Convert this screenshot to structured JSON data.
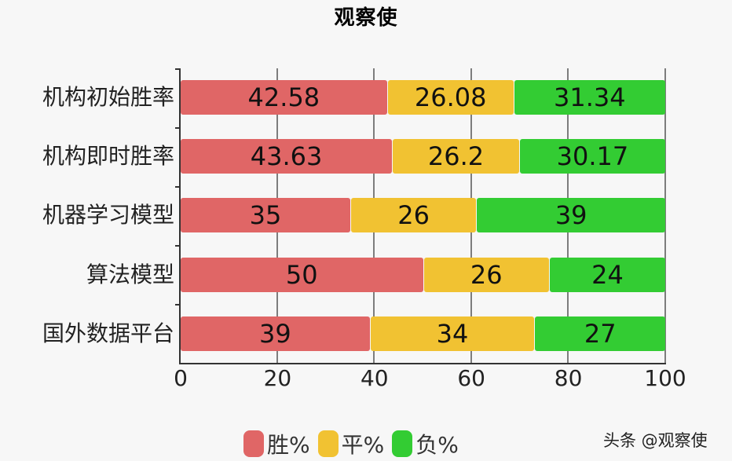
{
  "title": "观察使",
  "watermark": "头条 @观察使",
  "colors": {
    "win": "#e06666",
    "draw": "#f1c232",
    "loss": "#33cc33"
  },
  "legend": [
    {
      "label": "胜%",
      "color": "#e06666"
    },
    {
      "label": "平%",
      "color": "#f1c232"
    },
    {
      "label": "负%",
      "color": "#33cc33"
    }
  ],
  "x_ticks": [
    "0",
    "20",
    "40",
    "60",
    "80",
    "100"
  ],
  "rows": [
    {
      "label": "机构初始胜率",
      "win": "42.58",
      "draw": "26.08",
      "loss": "31.34"
    },
    {
      "label": "机构即时胜率",
      "win": "43.63",
      "draw": "26.2",
      "loss": "30.17"
    },
    {
      "label": "机器学习模型",
      "win": "35",
      "draw": "26",
      "loss": "39"
    },
    {
      "label": "算法模型",
      "win": "50",
      "draw": "26",
      "loss": "24"
    },
    {
      "label": "国外数据平台",
      "win": "39",
      "draw": "34",
      "loss": "27"
    }
  ],
  "chart_data": {
    "type": "bar",
    "orientation": "horizontal",
    "stacked": true,
    "title": "观察使",
    "categories": [
      "机构初始胜率",
      "机构即时胜率",
      "机器学习模型",
      "算法模型",
      "国外数据平台"
    ],
    "series": [
      {
        "name": "胜%",
        "color": "#e06666",
        "values": [
          42.58,
          43.63,
          35,
          50,
          39
        ]
      },
      {
        "name": "平%",
        "color": "#f1c232",
        "values": [
          26.08,
          26.2,
          26,
          26,
          34
        ]
      },
      {
        "name": "负%",
        "color": "#33cc33",
        "values": [
          31.34,
          30.17,
          39,
          24,
          27
        ]
      }
    ],
    "xlabel": "",
    "ylabel": "",
    "xlim": [
      0,
      100
    ],
    "x_ticks": [
      0,
      20,
      40,
      60,
      80,
      100
    ],
    "grid": "vertical",
    "legend_position": "bottom",
    "data_labels": true
  }
}
